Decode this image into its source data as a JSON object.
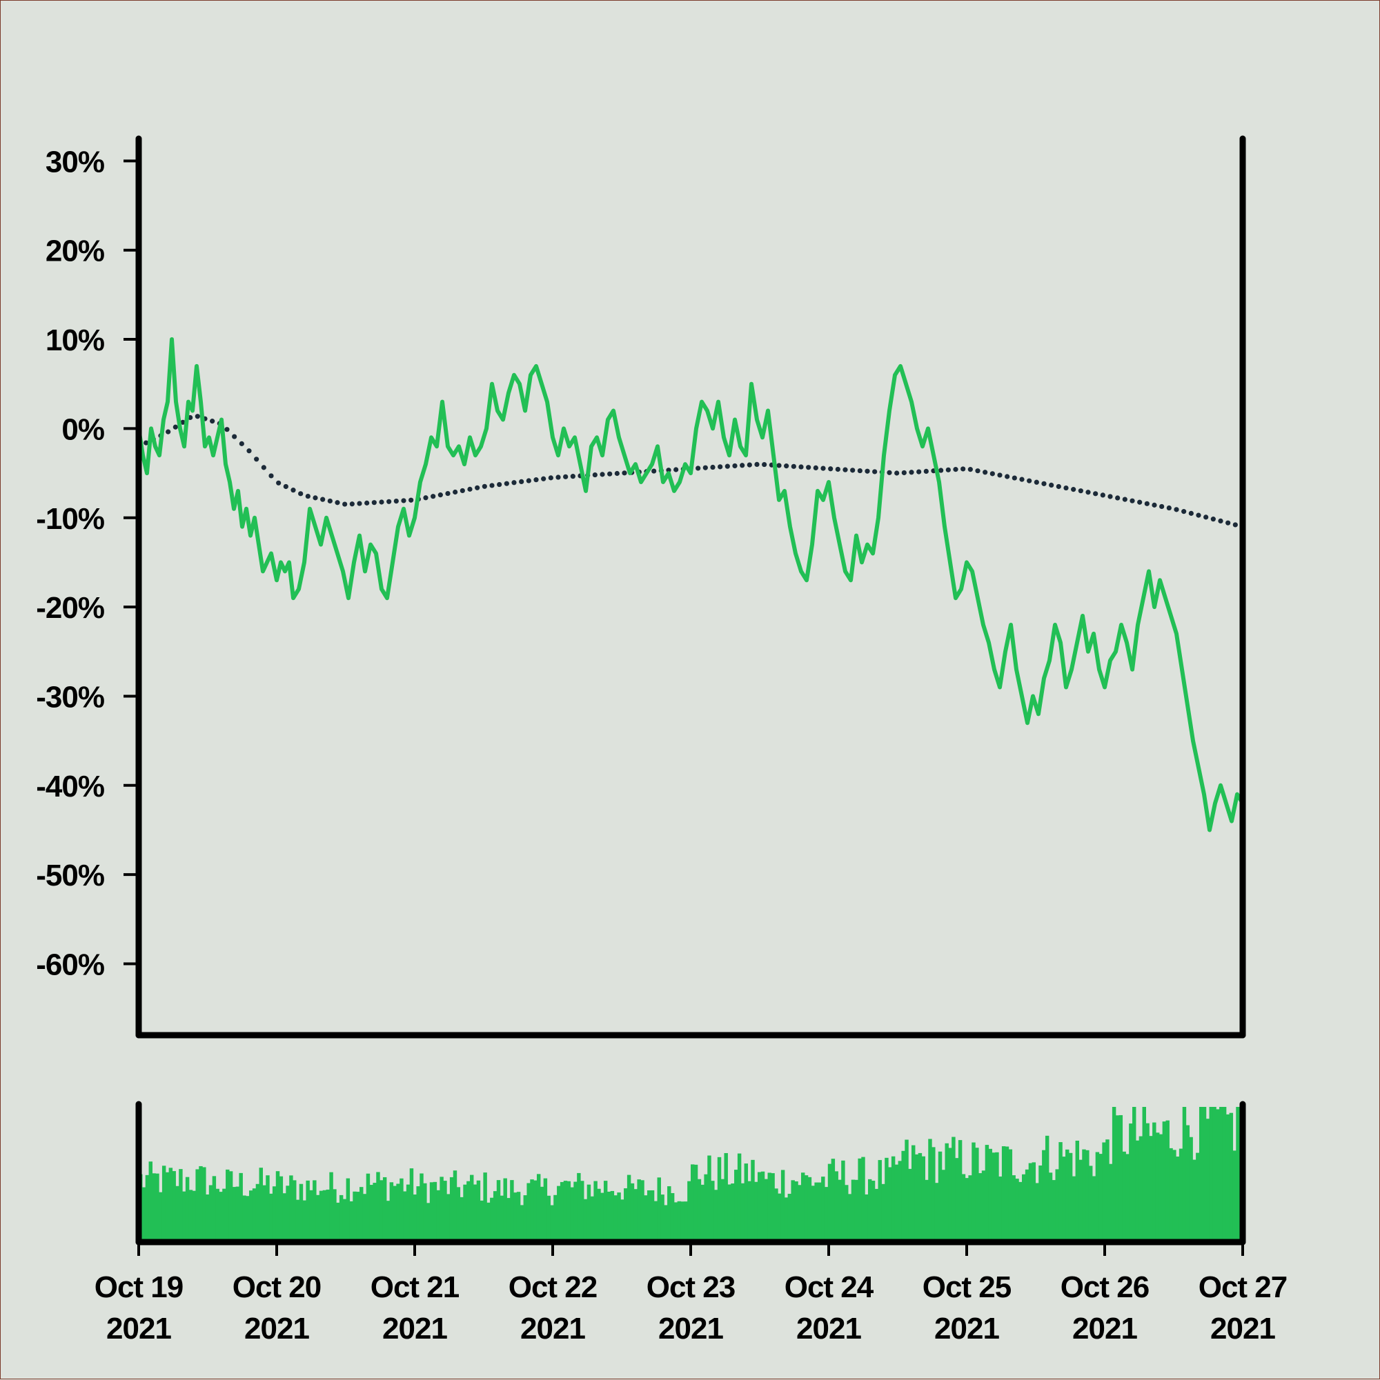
{
  "colors": {
    "background": "#dde2dc",
    "axis": "#000000",
    "price": "#22bf55",
    "trend": "#1c2a38",
    "volume": "#22bf55"
  },
  "chart_data": {
    "type": "line",
    "title": "",
    "xlabel": "",
    "ylabel": "",
    "grid": false,
    "legend": "none",
    "ylim": [
      -68,
      32.5
    ],
    "y_ticks": [
      30,
      20,
      10,
      0,
      -10,
      -20,
      -30,
      -40,
      -50,
      -60
    ],
    "y_tick_labels": [
      "30%",
      "20%",
      "10%",
      "0%",
      "-10%",
      "-20%",
      "-30%",
      "-40%",
      "-50%",
      "-60%"
    ],
    "xlim": [
      "2021-10-19",
      "2021-10-27"
    ],
    "x_tick_labels": [
      {
        "line1": "Oct 19",
        "line2": "2021"
      },
      {
        "line1": "Oct 20",
        "line2": "2021"
      },
      {
        "line1": "Oct 21",
        "line2": "2021"
      },
      {
        "line1": "Oct 22",
        "line2": "2021"
      },
      {
        "line1": "Oct 23",
        "line2": "2021"
      },
      {
        "line1": "Oct 24",
        "line2": "2021"
      },
      {
        "line1": "Oct 25",
        "line2": "2021"
      },
      {
        "line1": "Oct 26",
        "line2": "2021"
      },
      {
        "line1": "Oct 27",
        "line2": "2021"
      }
    ],
    "series": [
      {
        "style": "solid line",
        "x_unit": "days after 2021-10-19 00:00",
        "y_unit": "percent change",
        "points": [
          [
            0.0,
            0
          ],
          [
            0.03,
            -3
          ],
          [
            0.06,
            -5
          ],
          [
            0.09,
            0
          ],
          [
            0.12,
            -2
          ],
          [
            0.15,
            -3
          ],
          [
            0.18,
            1
          ],
          [
            0.21,
            3
          ],
          [
            0.24,
            10
          ],
          [
            0.27,
            3
          ],
          [
            0.3,
            0
          ],
          [
            0.33,
            -2
          ],
          [
            0.36,
            3
          ],
          [
            0.39,
            2
          ],
          [
            0.42,
            7
          ],
          [
            0.45,
            3
          ],
          [
            0.48,
            -2
          ],
          [
            0.51,
            -1
          ],
          [
            0.54,
            -3
          ],
          [
            0.57,
            -1
          ],
          [
            0.6,
            1
          ],
          [
            0.63,
            -4
          ],
          [
            0.66,
            -6
          ],
          [
            0.69,
            -9
          ],
          [
            0.72,
            -7
          ],
          [
            0.75,
            -11
          ],
          [
            0.78,
            -9
          ],
          [
            0.81,
            -12
          ],
          [
            0.84,
            -10
          ],
          [
            0.87,
            -13
          ],
          [
            0.9,
            -16
          ],
          [
            0.93,
            -15
          ],
          [
            0.96,
            -14
          ],
          [
            1.0,
            -17
          ],
          [
            1.03,
            -15
          ],
          [
            1.06,
            -16
          ],
          [
            1.09,
            -15
          ],
          [
            1.12,
            -19
          ],
          [
            1.16,
            -18
          ],
          [
            1.2,
            -15
          ],
          [
            1.24,
            -9
          ],
          [
            1.28,
            -11
          ],
          [
            1.32,
            -13
          ],
          [
            1.36,
            -10
          ],
          [
            1.4,
            -12
          ],
          [
            1.44,
            -14
          ],
          [
            1.48,
            -16
          ],
          [
            1.52,
            -19
          ],
          [
            1.56,
            -15
          ],
          [
            1.6,
            -12
          ],
          [
            1.64,
            -16
          ],
          [
            1.68,
            -13
          ],
          [
            1.72,
            -14
          ],
          [
            1.76,
            -18
          ],
          [
            1.8,
            -19
          ],
          [
            1.84,
            -15
          ],
          [
            1.88,
            -11
          ],
          [
            1.92,
            -9
          ],
          [
            1.96,
            -12
          ],
          [
            2.0,
            -10
          ],
          [
            2.04,
            -6
          ],
          [
            2.08,
            -4
          ],
          [
            2.12,
            -1
          ],
          [
            2.16,
            -2
          ],
          [
            2.2,
            3
          ],
          [
            2.24,
            -2
          ],
          [
            2.28,
            -3
          ],
          [
            2.32,
            -2
          ],
          [
            2.36,
            -4
          ],
          [
            2.4,
            -1
          ],
          [
            2.44,
            -3
          ],
          [
            2.48,
            -2
          ],
          [
            2.52,
            0
          ],
          [
            2.56,
            5
          ],
          [
            2.6,
            2
          ],
          [
            2.64,
            1
          ],
          [
            2.68,
            4
          ],
          [
            2.72,
            6
          ],
          [
            2.76,
            5
          ],
          [
            2.8,
            2
          ],
          [
            2.84,
            6
          ],
          [
            2.88,
            7
          ],
          [
            2.92,
            5
          ],
          [
            2.96,
            3
          ],
          [
            3.0,
            -1
          ],
          [
            3.04,
            -3
          ],
          [
            3.08,
            0
          ],
          [
            3.12,
            -2
          ],
          [
            3.16,
            -1
          ],
          [
            3.2,
            -4
          ],
          [
            3.24,
            -7
          ],
          [
            3.28,
            -2
          ],
          [
            3.32,
            -1
          ],
          [
            3.36,
            -3
          ],
          [
            3.4,
            1
          ],
          [
            3.44,
            2
          ],
          [
            3.48,
            -1
          ],
          [
            3.52,
            -3
          ],
          [
            3.56,
            -5
          ],
          [
            3.6,
            -4
          ],
          [
            3.64,
            -6
          ],
          [
            3.68,
            -5
          ],
          [
            3.72,
            -4
          ],
          [
            3.76,
            -2
          ],
          [
            3.8,
            -6
          ],
          [
            3.84,
            -5
          ],
          [
            3.88,
            -7
          ],
          [
            3.92,
            -6
          ],
          [
            3.96,
            -4
          ],
          [
            4.0,
            -5
          ],
          [
            4.04,
            0
          ],
          [
            4.08,
            3
          ],
          [
            4.12,
            2
          ],
          [
            4.16,
            0
          ],
          [
            4.2,
            3
          ],
          [
            4.24,
            -1
          ],
          [
            4.28,
            -3
          ],
          [
            4.32,
            1
          ],
          [
            4.36,
            -2
          ],
          [
            4.4,
            -3
          ],
          [
            4.44,
            5
          ],
          [
            4.48,
            1
          ],
          [
            4.52,
            -1
          ],
          [
            4.56,
            2
          ],
          [
            4.6,
            -3
          ],
          [
            4.64,
            -8
          ],
          [
            4.68,
            -7
          ],
          [
            4.72,
            -11
          ],
          [
            4.76,
            -14
          ],
          [
            4.8,
            -16
          ],
          [
            4.84,
            -17
          ],
          [
            4.88,
            -13
          ],
          [
            4.92,
            -7
          ],
          [
            4.96,
            -8
          ],
          [
            5.0,
            -6
          ],
          [
            5.04,
            -10
          ],
          [
            5.08,
            -13
          ],
          [
            5.12,
            -16
          ],
          [
            5.16,
            -17
          ],
          [
            5.2,
            -12
          ],
          [
            5.24,
            -15
          ],
          [
            5.28,
            -13
          ],
          [
            5.32,
            -14
          ],
          [
            5.36,
            -10
          ],
          [
            5.4,
            -3
          ],
          [
            5.44,
            2
          ],
          [
            5.48,
            6
          ],
          [
            5.52,
            7
          ],
          [
            5.56,
            5
          ],
          [
            5.6,
            3
          ],
          [
            5.64,
            0
          ],
          [
            5.68,
            -2
          ],
          [
            5.72,
            0
          ],
          [
            5.76,
            -3
          ],
          [
            5.8,
            -6
          ],
          [
            5.84,
            -11
          ],
          [
            5.88,
            -15
          ],
          [
            5.92,
            -19
          ],
          [
            5.96,
            -18
          ],
          [
            6.0,
            -15
          ],
          [
            6.04,
            -16
          ],
          [
            6.08,
            -19
          ],
          [
            6.12,
            -22
          ],
          [
            6.16,
            -24
          ],
          [
            6.2,
            -27
          ],
          [
            6.24,
            -29
          ],
          [
            6.28,
            -25
          ],
          [
            6.32,
            -22
          ],
          [
            6.36,
            -27
          ],
          [
            6.4,
            -30
          ],
          [
            6.44,
            -33
          ],
          [
            6.48,
            -30
          ],
          [
            6.52,
            -32
          ],
          [
            6.56,
            -28
          ],
          [
            6.6,
            -26
          ],
          [
            6.64,
            -22
          ],
          [
            6.68,
            -24
          ],
          [
            6.72,
            -29
          ],
          [
            6.76,
            -27
          ],
          [
            6.8,
            -24
          ],
          [
            6.84,
            -21
          ],
          [
            6.88,
            -25
          ],
          [
            6.92,
            -23
          ],
          [
            6.96,
            -27
          ],
          [
            7.0,
            -29
          ],
          [
            7.04,
            -26
          ],
          [
            7.08,
            -25
          ],
          [
            7.12,
            -22
          ],
          [
            7.16,
            -24
          ],
          [
            7.2,
            -27
          ],
          [
            7.24,
            -22
          ],
          [
            7.28,
            -19
          ],
          [
            7.32,
            -16
          ],
          [
            7.36,
            -20
          ],
          [
            7.4,
            -17
          ],
          [
            7.44,
            -19
          ],
          [
            7.48,
            -21
          ],
          [
            7.52,
            -23
          ],
          [
            7.56,
            -27
          ],
          [
            7.6,
            -31
          ],
          [
            7.64,
            -35
          ],
          [
            7.68,
            -38
          ],
          [
            7.72,
            -41
          ],
          [
            7.76,
            -45
          ],
          [
            7.8,
            -42
          ],
          [
            7.84,
            -40
          ],
          [
            7.88,
            -42
          ],
          [
            7.92,
            -44
          ],
          [
            7.96,
            -41
          ],
          [
            8.0,
            -42
          ]
        ]
      },
      {
        "style": "dotted trend line",
        "points": [
          [
            0.0,
            -2
          ],
          [
            0.2,
            -0.5
          ],
          [
            0.4,
            1.5
          ],
          [
            0.6,
            0.5
          ],
          [
            0.8,
            -2.5
          ],
          [
            1.0,
            -6
          ],
          [
            1.2,
            -7.5
          ],
          [
            1.5,
            -8.5
          ],
          [
            2.0,
            -8
          ],
          [
            2.5,
            -6.5
          ],
          [
            3.0,
            -5.5
          ],
          [
            3.5,
            -5
          ],
          [
            4.0,
            -4.5
          ],
          [
            4.5,
            -4
          ],
          [
            5.0,
            -4.5
          ],
          [
            5.5,
            -5
          ],
          [
            6.0,
            -4.5
          ],
          [
            6.5,
            -6
          ],
          [
            7.0,
            -7.5
          ],
          [
            7.5,
            -9
          ],
          [
            8.0,
            -11
          ]
        ]
      }
    ],
    "volume": {
      "style": "bars",
      "trend_by_day": [
        0.45,
        0.42,
        0.4,
        0.42,
        0.4,
        0.38,
        0.4,
        0.38,
        0.5,
        0.45,
        0.48,
        0.6,
        0.58,
        0.62,
        0.78,
        0.85
      ]
    }
  }
}
